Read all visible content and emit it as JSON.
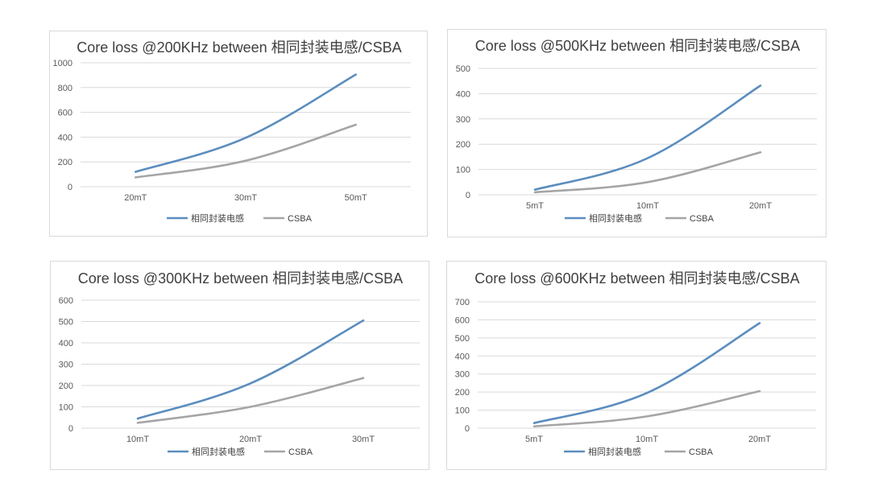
{
  "colors": {
    "series1": "#5B8DBE",
    "series2": "#A5A5A5",
    "grid": "#D9D9D9",
    "border": "#D9D9D9"
  },
  "chart_data": [
    {
      "type": "line",
      "title": "Core loss @200KHz between 相同封装电感/CSBA",
      "categories": [
        "20mT",
        "30mT",
        "50mT"
      ],
      "ylim": [
        0,
        1000
      ],
      "yticks": [
        0,
        200,
        400,
        600,
        800,
        1000
      ],
      "grid": true,
      "legend": "bottom",
      "series": [
        {
          "name": "相同封装电感",
          "values": [
            120,
            395,
            905
          ]
        },
        {
          "name": "CSBA",
          "values": [
            75,
            210,
            500
          ]
        }
      ]
    },
    {
      "type": "line",
      "title": "Core loss @500KHz between 相同封装电感/CSBA",
      "categories": [
        "5mT",
        "10mT",
        "20mT"
      ],
      "ylim": [
        0,
        500
      ],
      "yticks": [
        0,
        100,
        200,
        300,
        400,
        500
      ],
      "grid": true,
      "legend": "bottom",
      "series": [
        {
          "name": "相同封装电感",
          "values": [
            20,
            145,
            432
          ]
        },
        {
          "name": "CSBA",
          "values": [
            10,
            50,
            168
          ]
        }
      ]
    },
    {
      "type": "line",
      "title": "Core loss @300KHz between 相同封装电感/CSBA",
      "categories": [
        "10mT",
        "20mT",
        "30mT"
      ],
      "ylim": [
        0,
        600
      ],
      "yticks": [
        0,
        100,
        200,
        300,
        400,
        500,
        600
      ],
      "grid": true,
      "legend": "bottom",
      "series": [
        {
          "name": "相同封装电感",
          "values": [
            45,
            210,
            505
          ]
        },
        {
          "name": "CSBA",
          "values": [
            25,
            100,
            235
          ]
        }
      ]
    },
    {
      "type": "line",
      "title": "Core loss @600KHz between 相同封装电感/CSBA",
      "categories": [
        "5mT",
        "10mT",
        "20mT"
      ],
      "ylim": [
        0,
        700
      ],
      "yticks": [
        0,
        100,
        200,
        300,
        400,
        500,
        600,
        700
      ],
      "grid": true,
      "legend": "bottom",
      "series": [
        {
          "name": "相同封装电感",
          "values": [
            28,
            195,
            582
          ]
        },
        {
          "name": "CSBA",
          "values": [
            10,
            65,
            205
          ]
        }
      ]
    }
  ]
}
